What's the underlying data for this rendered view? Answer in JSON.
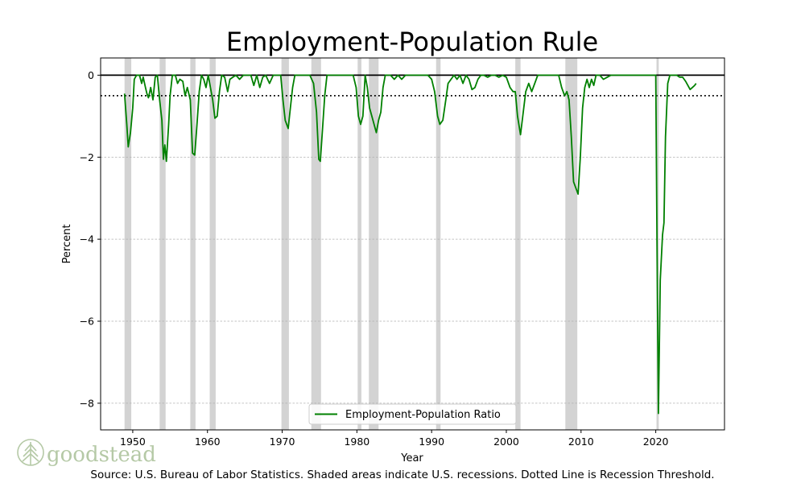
{
  "chart_data": {
    "type": "line",
    "title": "Employment-Population Rule",
    "xlabel": "Year",
    "ylabel": "Percent",
    "xlim": [
      1945.7,
      2029.2
    ],
    "ylim": [
      -8.65,
      0.42
    ],
    "x_ticks": [
      1950,
      1960,
      1970,
      1980,
      1990,
      2000,
      2010,
      2020
    ],
    "y_ticks": [
      0,
      -2,
      -4,
      -6,
      -8
    ],
    "y_tick_labels": [
      "0",
      "−2",
      "−4",
      "−6",
      "−8"
    ],
    "grid": "horizontal dashed",
    "legend_position": "bottom-center",
    "reference_lines": [
      {
        "y": 0,
        "style": "solid",
        "color": "#000000"
      },
      {
        "y": -0.5,
        "style": "dotted",
        "color": "#000000",
        "meaning": "Recession Threshold"
      }
    ],
    "recessions": [
      [
        1948.9,
        1949.8
      ],
      [
        1953.6,
        1954.4
      ],
      [
        1957.7,
        1958.4
      ],
      [
        1960.3,
        1961.1
      ],
      [
        1969.9,
        1970.9
      ],
      [
        1973.9,
        1975.2
      ],
      [
        1980.1,
        1980.6
      ],
      [
        1981.6,
        1982.9
      ],
      [
        1990.6,
        1991.2
      ],
      [
        2001.2,
        2001.9
      ],
      [
        2007.9,
        2009.5
      ],
      [
        2020.1,
        2020.4
      ]
    ],
    "series": [
      {
        "name": "Employment-Population Ratio",
        "color": "#008000",
        "points": [
          [
            1948.9,
            -0.45
          ],
          [
            1949.2,
            -1.2
          ],
          [
            1949.4,
            -1.75
          ],
          [
            1949.7,
            -1.4
          ],
          [
            1950.0,
            -0.8
          ],
          [
            1950.2,
            -0.1
          ],
          [
            1950.5,
            0
          ],
          [
            1950.9,
            0
          ],
          [
            1951.2,
            -0.2
          ],
          [
            1951.4,
            -0.05
          ],
          [
            1951.7,
            -0.3
          ],
          [
            1951.9,
            -0.45
          ],
          [
            1952.1,
            -0.55
          ],
          [
            1952.4,
            -0.3
          ],
          [
            1952.7,
            -0.6
          ],
          [
            1953.0,
            -0.05
          ],
          [
            1953.3,
            0
          ],
          [
            1953.6,
            -0.6
          ],
          [
            1953.9,
            -1.1
          ],
          [
            1954.1,
            -2.05
          ],
          [
            1954.3,
            -1.7
          ],
          [
            1954.5,
            -2.1
          ],
          [
            1954.8,
            -1.2
          ],
          [
            1955.0,
            -0.5
          ],
          [
            1955.3,
            0
          ],
          [
            1955.7,
            0
          ],
          [
            1956.0,
            -0.2
          ],
          [
            1956.3,
            -0.1
          ],
          [
            1956.7,
            -0.15
          ],
          [
            1957.0,
            -0.5
          ],
          [
            1957.3,
            -0.3
          ],
          [
            1957.7,
            -0.6
          ],
          [
            1958.0,
            -1.9
          ],
          [
            1958.3,
            -1.95
          ],
          [
            1958.6,
            -1.2
          ],
          [
            1958.9,
            -0.4
          ],
          [
            1959.2,
            0
          ],
          [
            1959.5,
            -0.1
          ],
          [
            1959.8,
            -0.3
          ],
          [
            1960.1,
            0
          ],
          [
            1960.4,
            -0.3
          ],
          [
            1960.7,
            -0.6
          ],
          [
            1961.0,
            -1.05
          ],
          [
            1961.3,
            -1.0
          ],
          [
            1961.6,
            -0.4
          ],
          [
            1961.9,
            0
          ],
          [
            1962.3,
            -0.05
          ],
          [
            1962.7,
            -0.4
          ],
          [
            1963.0,
            -0.1
          ],
          [
            1963.4,
            -0.05
          ],
          [
            1963.8,
            0
          ],
          [
            1964.3,
            -0.1
          ],
          [
            1964.8,
            0
          ],
          [
            1965.3,
            0
          ],
          [
            1965.8,
            0
          ],
          [
            1966.2,
            -0.25
          ],
          [
            1966.6,
            0
          ],
          [
            1967.0,
            -0.3
          ],
          [
            1967.4,
            -0.05
          ],
          [
            1967.8,
            0
          ],
          [
            1968.3,
            -0.2
          ],
          [
            1968.8,
            0
          ],
          [
            1969.3,
            0
          ],
          [
            1969.8,
            0
          ],
          [
            1970.1,
            -0.6
          ],
          [
            1970.4,
            -1.1
          ],
          [
            1970.8,
            -1.3
          ],
          [
            1971.1,
            -0.8
          ],
          [
            1971.4,
            -0.3
          ],
          [
            1971.7,
            0
          ],
          [
            1972.2,
            0
          ],
          [
            1972.7,
            0
          ],
          [
            1973.2,
            0
          ],
          [
            1973.7,
            0
          ],
          [
            1974.2,
            -0.2
          ],
          [
            1974.6,
            -0.9
          ],
          [
            1974.9,
            -2.05
          ],
          [
            1975.1,
            -2.1
          ],
          [
            1975.4,
            -1.3
          ],
          [
            1975.7,
            -0.5
          ],
          [
            1976.0,
            0
          ],
          [
            1976.5,
            0
          ],
          [
            1977.0,
            0
          ],
          [
            1977.5,
            0
          ],
          [
            1978.0,
            0
          ],
          [
            1978.5,
            0
          ],
          [
            1979.0,
            0
          ],
          [
            1979.5,
            0
          ],
          [
            1979.9,
            -0.3
          ],
          [
            1980.2,
            -1.0
          ],
          [
            1980.5,
            -1.2
          ],
          [
            1980.8,
            -1.0
          ],
          [
            1981.1,
            0
          ],
          [
            1981.4,
            -0.3
          ],
          [
            1981.7,
            -0.8
          ],
          [
            1982.0,
            -1.0
          ],
          [
            1982.3,
            -1.2
          ],
          [
            1982.6,
            -1.4
          ],
          [
            1982.9,
            -1.1
          ],
          [
            1983.2,
            -0.9
          ],
          [
            1983.5,
            -0.3
          ],
          [
            1983.8,
            0
          ],
          [
            1984.5,
            0
          ],
          [
            1985.0,
            -0.1
          ],
          [
            1985.5,
            0
          ],
          [
            1986.0,
            -0.1
          ],
          [
            1986.5,
            0
          ],
          [
            1987.0,
            0
          ],
          [
            1987.5,
            0
          ],
          [
            1988.0,
            0
          ],
          [
            1988.5,
            0
          ],
          [
            1989.0,
            0
          ],
          [
            1989.5,
            0
          ],
          [
            1990.0,
            -0.1
          ],
          [
            1990.4,
            -0.4
          ],
          [
            1990.8,
            -1.0
          ],
          [
            1991.1,
            -1.2
          ],
          [
            1991.5,
            -1.1
          ],
          [
            1991.9,
            -0.6
          ],
          [
            1992.2,
            -0.2
          ],
          [
            1992.6,
            -0.1
          ],
          [
            1993.0,
            0
          ],
          [
            1993.4,
            -0.1
          ],
          [
            1993.8,
            0
          ],
          [
            1994.2,
            -0.2
          ],
          [
            1994.6,
            0
          ],
          [
            1995.0,
            -0.1
          ],
          [
            1995.4,
            -0.35
          ],
          [
            1995.8,
            -0.3
          ],
          [
            1996.2,
            -0.1
          ],
          [
            1996.6,
            0
          ],
          [
            1997.0,
            0
          ],
          [
            1997.5,
            -0.05
          ],
          [
            1998.0,
            0
          ],
          [
            1998.5,
            0
          ],
          [
            1999.0,
            -0.05
          ],
          [
            1999.5,
            0
          ],
          [
            2000.0,
            -0.05
          ],
          [
            2000.5,
            -0.3
          ],
          [
            2000.9,
            -0.4
          ],
          [
            2001.2,
            -0.4
          ],
          [
            2001.5,
            -1.0
          ],
          [
            2001.9,
            -1.45
          ],
          [
            2002.2,
            -1.0
          ],
          [
            2002.6,
            -0.4
          ],
          [
            2003.0,
            -0.2
          ],
          [
            2003.4,
            -0.4
          ],
          [
            2003.8,
            -0.2
          ],
          [
            2004.2,
            0
          ],
          [
            2004.6,
            0
          ],
          [
            2005.0,
            0
          ],
          [
            2005.5,
            0
          ],
          [
            2006.0,
            0
          ],
          [
            2006.5,
            0
          ],
          [
            2007.0,
            0
          ],
          [
            2007.4,
            -0.3
          ],
          [
            2007.8,
            -0.5
          ],
          [
            2008.1,
            -0.4
          ],
          [
            2008.4,
            -0.6
          ],
          [
            2008.7,
            -1.5
          ],
          [
            2009.0,
            -2.6
          ],
          [
            2009.3,
            -2.75
          ],
          [
            2009.6,
            -2.9
          ],
          [
            2009.9,
            -2.0
          ],
          [
            2010.2,
            -0.8
          ],
          [
            2010.5,
            -0.3
          ],
          [
            2010.8,
            -0.1
          ],
          [
            2011.1,
            -0.3
          ],
          [
            2011.4,
            -0.1
          ],
          [
            2011.7,
            -0.25
          ],
          [
            2012.0,
            0
          ],
          [
            2012.5,
            0
          ],
          [
            2013.0,
            -0.1
          ],
          [
            2013.5,
            -0.05
          ],
          [
            2014.0,
            0
          ],
          [
            2014.5,
            0
          ],
          [
            2015.0,
            0
          ],
          [
            2015.5,
            0
          ],
          [
            2016.0,
            0
          ],
          [
            2016.5,
            0
          ],
          [
            2017.0,
            0
          ],
          [
            2017.5,
            0
          ],
          [
            2018.0,
            0
          ],
          [
            2018.5,
            0
          ],
          [
            2019.0,
            0
          ],
          [
            2019.5,
            0
          ],
          [
            2020.0,
            0
          ],
          [
            2020.2,
            -5.0
          ],
          [
            2020.35,
            -8.25
          ],
          [
            2020.6,
            -5.0
          ],
          [
            2020.9,
            -3.9
          ],
          [
            2021.1,
            -3.6
          ],
          [
            2021.3,
            -1.5
          ],
          [
            2021.6,
            -0.2
          ],
          [
            2021.9,
            0
          ],
          [
            2022.3,
            0
          ],
          [
            2022.8,
            0
          ],
          [
            2023.2,
            -0.05
          ],
          [
            2023.6,
            -0.05
          ],
          [
            2024.0,
            -0.15
          ],
          [
            2024.3,
            -0.25
          ],
          [
            2024.6,
            -0.35
          ],
          [
            2024.9,
            -0.3
          ],
          [
            2025.2,
            -0.25
          ],
          [
            2025.4,
            -0.2
          ]
        ]
      }
    ]
  },
  "source_note": "Source: U.S. Bureau of Labor Statistics. Shaded areas indicate U.S. recessions. Dotted Line is Recession Threshold.",
  "logo": {
    "text": "goodstead",
    "color": "#b5c9a6"
  }
}
